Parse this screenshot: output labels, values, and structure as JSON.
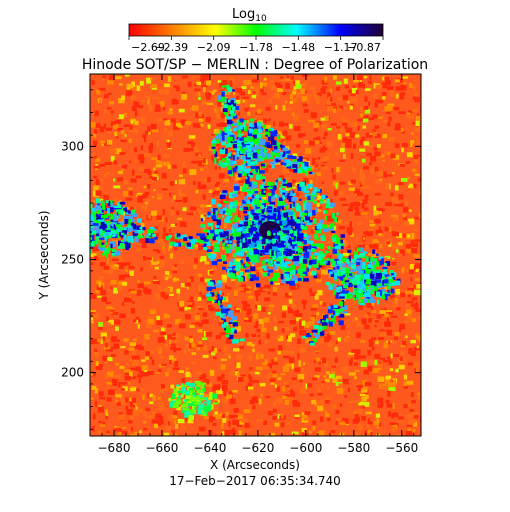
{
  "colorbar": {
    "label_base": "Log",
    "label_sub": "10",
    "ticks": [
      "−2.69",
      "−2.39",
      "−2.09",
      "−1.78",
      "−1.48",
      "−1.17",
      "−0.87"
    ],
    "range": [
      -2.69,
      -0.87
    ],
    "colors": [
      "#ff0000",
      "#ff7f00",
      "#ffff00",
      "#00ff00",
      "#00ffff",
      "#0000ff",
      "#200033"
    ]
  },
  "title": "Hinode SOT/SP − MERLIN : Degree of Polarization",
  "x_axis": {
    "label": "X (Arcseconds)",
    "ticks": [
      "−680",
      "−660",
      "−640",
      "−620",
      "−600",
      "−580",
      "−560"
    ],
    "tick_values": [
      -680,
      -660,
      -640,
      -620,
      -600,
      -580,
      -560
    ],
    "range": [
      -690,
      -552
    ]
  },
  "y_axis": {
    "label": "Y (Arcseconds)",
    "ticks": [
      "200",
      "250",
      "300"
    ],
    "tick_values": [
      200,
      250,
      300
    ],
    "range": [
      172,
      332
    ]
  },
  "timestamp": "17−Feb−2017 06:35:34.740",
  "map": {
    "style": "noisy-polarization-map",
    "background_color": "#ff5a1e",
    "structures": [
      {
        "kind": "sunspot-core",
        "x": -615,
        "y": 263
      },
      {
        "kind": "network-strong",
        "x": -625,
        "y": 300
      },
      {
        "kind": "network-strong",
        "x": -685,
        "y": 265
      },
      {
        "kind": "network-strong",
        "x": -577,
        "y": 243
      },
      {
        "kind": "network-weak",
        "x": -648,
        "y": 189
      }
    ]
  }
}
